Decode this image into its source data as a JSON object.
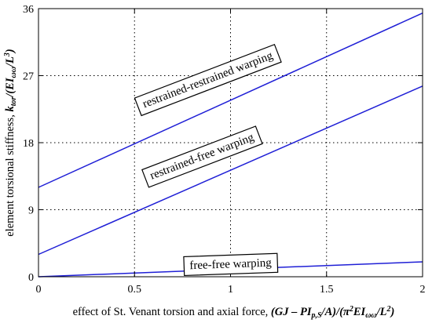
{
  "chart_data": {
    "type": "line",
    "xlabel_parts": [
      "effect of St. Venant torsion and axial force, ",
      "(GJ – PI",
      "p,S",
      "/A)/(π",
      "2",
      "EI",
      "ωω",
      "/L",
      "2",
      ")"
    ],
    "ylabel_parts": [
      "element torsional stiffness, ",
      "k",
      "tor",
      "/(EI",
      "ωω",
      "/L",
      "3",
      ")"
    ],
    "xlim": [
      0,
      2
    ],
    "ylim": [
      0,
      36
    ],
    "xticks": [
      0,
      0.5,
      1,
      1.5,
      2
    ],
    "xtick_labels": [
      "0",
      "0.5",
      "1",
      "1.5",
      "2"
    ],
    "yticks": [
      0,
      9,
      18,
      27,
      36
    ],
    "ytick_labels": [
      "0",
      "9",
      "18",
      "27",
      "36"
    ],
    "grid": true,
    "color": "#1f1fd6",
    "series": [
      {
        "x": [
          0,
          2
        ],
        "y": [
          12,
          35.4
        ]
      },
      {
        "x": [
          0,
          2
        ],
        "y": [
          3,
          25.6
        ]
      },
      {
        "x": [
          0,
          2
        ],
        "y": [
          0,
          2
        ]
      }
    ],
    "annotations": [
      {
        "text": "restrained-restrained warping",
        "x": 0.88,
        "y": 26.5,
        "angle_deg": -21
      },
      {
        "text": "restrained-free warping",
        "x": 0.85,
        "y": 16.2,
        "angle_deg": -21
      },
      {
        "text": "free-free warping",
        "x": 1.0,
        "y": 1.75,
        "angle_deg": -2
      }
    ]
  }
}
